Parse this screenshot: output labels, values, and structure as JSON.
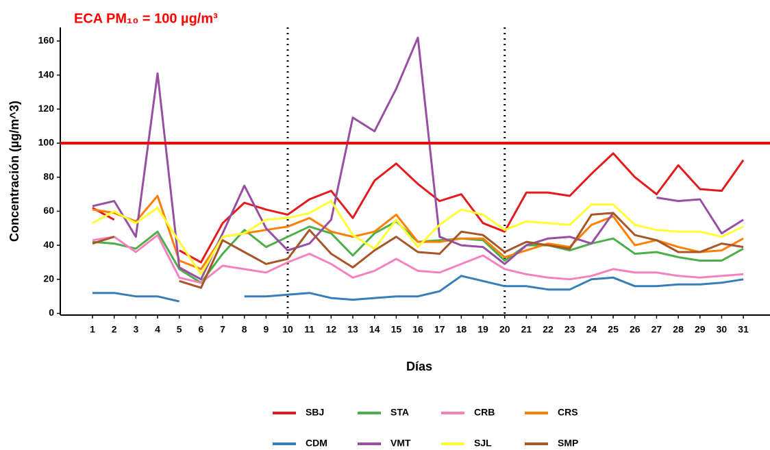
{
  "chart_data": {
    "type": "line",
    "annotation": "ECA PM₁₀ = 100 µg/m³",
    "xlabel": "Días",
    "ylabel": "Concentración (µg/m^3)",
    "categories": [
      "1",
      "2",
      "3",
      "4",
      "5",
      "6",
      "7",
      "8",
      "9",
      "10",
      "11",
      "12",
      "13",
      "14",
      "15",
      "16",
      "17",
      "18",
      "19",
      "20",
      "21",
      "22",
      "23",
      "24",
      "25",
      "26",
      "27",
      "28",
      "29",
      "30",
      "31"
    ],
    "series": [
      {
        "name": "SBJ",
        "color": "#e41a1c",
        "values": [
          62,
          55,
          null,
          null,
          37,
          30,
          53,
          65,
          61,
          58,
          67,
          72,
          56,
          78,
          88,
          76,
          66,
          70,
          53,
          48,
          71,
          71,
          69,
          82,
          94,
          80,
          70,
          87,
          73,
          72,
          90
        ]
      },
      {
        "name": "STA",
        "color": "#4daf4a",
        "values": [
          42,
          41,
          38,
          48,
          26,
          18,
          35,
          49,
          39,
          45,
          51,
          47,
          34,
          47,
          54,
          42,
          43,
          44,
          43,
          31,
          40,
          40,
          37,
          41,
          44,
          35,
          36,
          33,
          31,
          31,
          38
        ]
      },
      {
        "name": "CRB",
        "color": "#f781bf",
        "values": [
          43,
          45,
          36,
          46,
          21,
          18,
          28,
          26,
          24,
          30,
          35,
          29,
          21,
          25,
          32,
          25,
          24,
          29,
          34,
          26,
          23,
          21,
          20,
          22,
          26,
          24,
          24,
          22,
          21,
          22,
          23
        ]
      },
      {
        "name": "CRS",
        "color": "#ff7f00",
        "values": [
          61,
          59,
          54,
          69,
          31,
          26,
          45,
          47,
          49,
          51,
          56,
          48,
          45,
          48,
          58,
          42,
          42,
          44,
          44,
          33,
          37,
          41,
          39,
          52,
          57,
          40,
          43,
          39,
          36,
          37,
          44
        ]
      },
      {
        "name": "CDM",
        "color": "#377eb8",
        "values": [
          12,
          12,
          10,
          10,
          7,
          null,
          null,
          10,
          10,
          11,
          12,
          9,
          8,
          9,
          10,
          10,
          13,
          22,
          19,
          16,
          16,
          14,
          14,
          20,
          21,
          16,
          16,
          17,
          17,
          18,
          20
        ]
      },
      {
        "name": "VMT",
        "color": "#984ea3",
        "values": [
          63,
          66,
          45,
          141,
          27,
          20,
          47,
          75,
          50,
          37,
          41,
          55,
          115,
          107,
          132,
          162,
          45,
          40,
          39,
          29,
          40,
          44,
          45,
          41,
          59,
          null,
          68,
          66,
          67,
          47,
          55
        ]
      },
      {
        "name": "SJL",
        "color": "#ffff33",
        "values": [
          53,
          60,
          53,
          62,
          42,
          23,
          45,
          47,
          55,
          56,
          59,
          66,
          46,
          38,
          55,
          39,
          52,
          61,
          58,
          49,
          54,
          53,
          52,
          64,
          64,
          52,
          49,
          48,
          48,
          45,
          51
        ]
      },
      {
        "name": "SMP",
        "color": "#a65628",
        "values": [
          41,
          45,
          null,
          null,
          19,
          15,
          43,
          36,
          29,
          32,
          49,
          35,
          27,
          37,
          45,
          36,
          35,
          48,
          46,
          36,
          42,
          40,
          38,
          58,
          59,
          46,
          43,
          36,
          36,
          41,
          39
        ]
      }
    ],
    "ylim": [
      -1,
      168
    ],
    "yticks": [
      0,
      20,
      40,
      60,
      80,
      100,
      120,
      140,
      160
    ],
    "hline": {
      "value": 100,
      "color": "#ff0000"
    },
    "vlines": [
      10,
      20
    ],
    "legend": "bottom"
  }
}
